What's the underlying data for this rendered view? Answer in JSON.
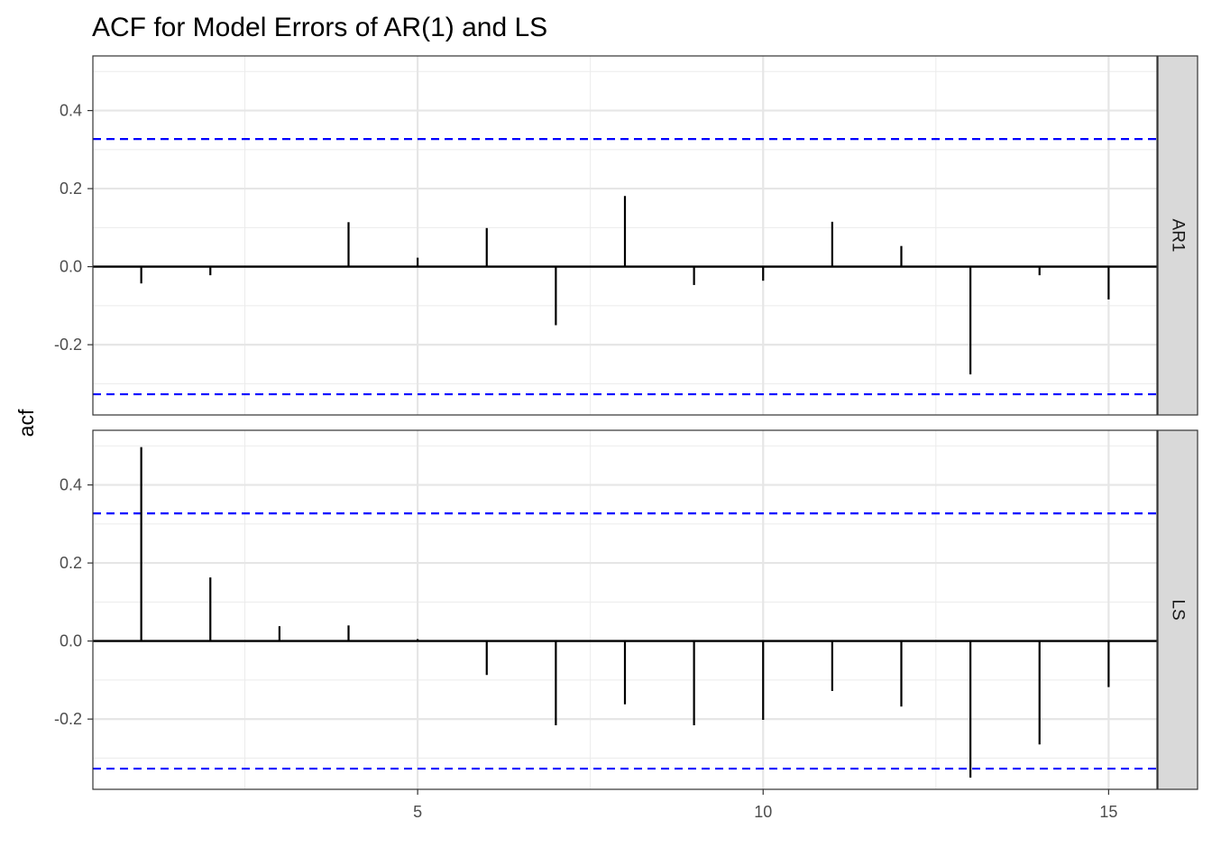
{
  "chart_data": {
    "type": "bar",
    "title": "ACF for Model Errors of AR(1) and LS",
    "xlabel": "",
    "ylabel": "acf",
    "xlim": [
      0.3,
      15.7
    ],
    "ylim": [
      -0.38,
      0.54
    ],
    "x_ticks": [
      5,
      10,
      15
    ],
    "y_ticks": [
      -0.2,
      0.0,
      0.2,
      0.4
    ],
    "x_tick_labels": [
      "5",
      "10",
      "15"
    ],
    "y_tick_labels": [
      "-0.2",
      "0.0",
      "0.2",
      "0.4"
    ],
    "grid": true,
    "confidence_bound": 0.327,
    "bound_color": "#0000ff",
    "line_color": "#000000",
    "facets": [
      {
        "name": "AR1",
        "lags": [
          1,
          2,
          3,
          4,
          5,
          6,
          7,
          8,
          9,
          10,
          11,
          12,
          13,
          14,
          15
        ],
        "values": [
          -0.043,
          -0.022,
          -0.001,
          0.114,
          0.023,
          0.099,
          -0.15,
          0.181,
          -0.047,
          -0.036,
          0.115,
          0.053,
          -0.276,
          -0.022,
          -0.084
        ]
      },
      {
        "name": "LS",
        "lags": [
          1,
          2,
          3,
          4,
          5,
          6,
          7,
          8,
          9,
          10,
          11,
          12,
          13,
          14,
          15
        ],
        "values": [
          0.497,
          0.163,
          0.038,
          0.04,
          0.005,
          -0.087,
          -0.216,
          -0.162,
          -0.216,
          -0.202,
          -0.128,
          -0.168,
          -0.35,
          -0.265,
          -0.118
        ]
      }
    ]
  }
}
